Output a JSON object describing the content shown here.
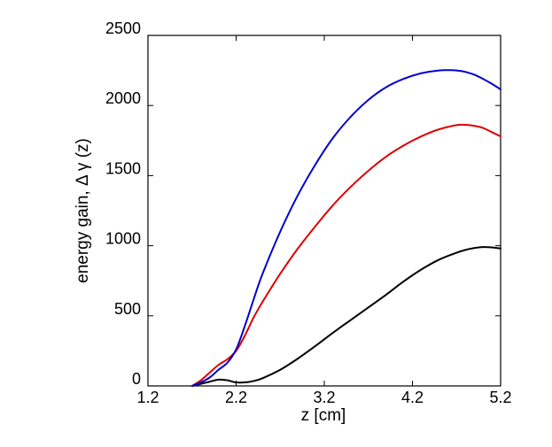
{
  "chart_data": {
    "type": "line",
    "title": "",
    "xlabel": "z [cm]",
    "ylabel": "energy gain, Δ γ (z)",
    "xlim": [
      1.2,
      5.2
    ],
    "ylim": [
      0,
      2500
    ],
    "xticks": [
      1.2,
      2.2,
      3.2,
      4.2,
      5.2
    ],
    "xtick_labels": [
      "1.2",
      "2.2",
      "3.2",
      "4.2",
      "5.2"
    ],
    "yticks": [
      0,
      500,
      1000,
      1500,
      2000,
      2500
    ],
    "ytick_labels": [
      "0",
      "500",
      "1000",
      "1500",
      "2000",
      "2500"
    ],
    "grid": false,
    "legend": "none",
    "series": [
      {
        "name": "black curve",
        "color": "#000000",
        "x": [
          1.7,
          1.8,
          1.9,
          2.0,
          2.1,
          2.2,
          2.3,
          2.4,
          2.5,
          2.7,
          2.9,
          3.1,
          3.3,
          3.5,
          3.7,
          3.9,
          4.1,
          4.3,
          4.5,
          4.7,
          4.8,
          4.9,
          5.0,
          5.1,
          5.2
        ],
        "y": [
          0,
          15,
          30,
          45,
          40,
          25,
          25,
          35,
          55,
          115,
          195,
          285,
          380,
          470,
          560,
          650,
          745,
          830,
          900,
          950,
          970,
          983,
          990,
          988,
          980
        ]
      },
      {
        "name": "red curve",
        "color": "#dd0000",
        "x": [
          1.7,
          1.8,
          1.9,
          2.0,
          2.1,
          2.2,
          2.3,
          2.4,
          2.5,
          2.7,
          2.9,
          3.1,
          3.3,
          3.5,
          3.7,
          3.9,
          4.1,
          4.3,
          4.5,
          4.7,
          4.8,
          4.9,
          5.0,
          5.1,
          5.2
        ],
        "y": [
          0,
          40,
          95,
          150,
          190,
          250,
          360,
          490,
          600,
          800,
          980,
          1140,
          1290,
          1420,
          1535,
          1635,
          1715,
          1780,
          1830,
          1860,
          1862,
          1855,
          1840,
          1810,
          1780
        ]
      },
      {
        "name": "blue curve",
        "color": "#0000cc",
        "x": [
          1.7,
          1.8,
          1.9,
          2.0,
          2.1,
          2.2,
          2.3,
          2.4,
          2.5,
          2.7,
          2.9,
          3.1,
          3.3,
          3.5,
          3.7,
          3.9,
          4.1,
          4.3,
          4.5,
          4.6,
          4.7,
          4.8,
          4.9,
          5.0,
          5.1,
          5.2
        ],
        "y": [
          0,
          25,
          60,
          115,
          165,
          260,
          430,
          620,
          800,
          1100,
          1360,
          1580,
          1770,
          1920,
          2040,
          2130,
          2190,
          2230,
          2250,
          2252,
          2250,
          2240,
          2220,
          2190,
          2155,
          2115
        ]
      }
    ]
  }
}
